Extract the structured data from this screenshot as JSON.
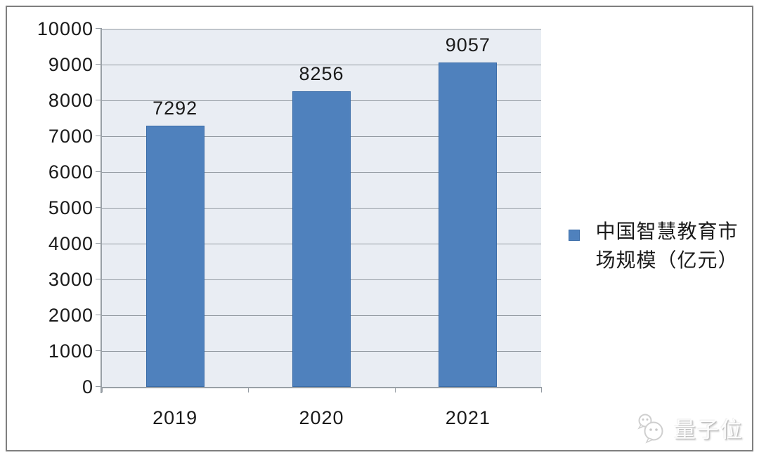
{
  "chart_data": {
    "type": "bar",
    "title": "",
    "categories": [
      "2019",
      "2020",
      "2021"
    ],
    "values": [
      7292,
      8256,
      9057
    ],
    "data_labels": [
      "7292",
      "8256",
      "9057"
    ],
    "series_name": "中国智慧教育市场规模（亿元）",
    "legend": {
      "position": "right",
      "label": "中国智慧教育市场规模（亿元）",
      "label_lines": [
        "中国智慧教育市",
        "场规模（亿元）"
      ]
    },
    "xlabel": "",
    "ylabel": "",
    "ylim": [
      0,
      10000
    ],
    "ytick_step": 1000,
    "ytick_labels": [
      "0",
      "1000",
      "2000",
      "3000",
      "4000",
      "5000",
      "6000",
      "7000",
      "8000",
      "9000",
      "10000"
    ],
    "grid": true,
    "colors": {
      "bar": "#4F81BD",
      "bar_border": "#3A6CA8",
      "plot_background": "#E9EDF3",
      "gridline": "#939AA1",
      "axis": "#99A0A6",
      "text": "#1A1A1A",
      "frame_border": "#7F7F7F"
    }
  },
  "watermark": {
    "text": "量子位",
    "icon": "wechat-chat-bubbles-icon",
    "style_color": "#C9C9C9"
  }
}
